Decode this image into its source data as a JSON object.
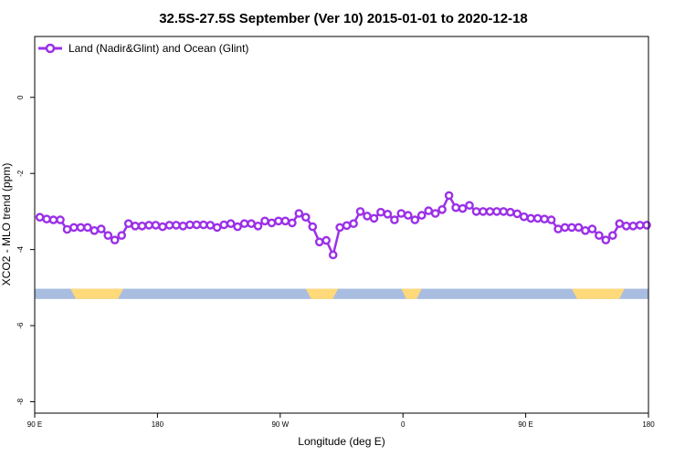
{
  "chart_data": {
    "type": "line",
    "title": "32.5S-27.5S September (Ver 10)   2015-01-01 to 2020-12-18",
    "xlabel": "Longitude (deg E)",
    "ylabel": "XCO2 - MLO trend (ppm)",
    "xlim": [
      90,
      450
    ],
    "ylim": [
      -8.3,
      1.6
    ],
    "x_ticks": [
      {
        "value": 90,
        "label": "90 E"
      },
      {
        "value": 162,
        "label": "180"
      },
      {
        "value": 234,
        "label": "90 W"
      },
      {
        "value": 306,
        "label": "0"
      },
      {
        "value": 378,
        "label": "90 E"
      },
      {
        "value": 450,
        "label": "180"
      }
    ],
    "y_ticks": [
      {
        "value": 0,
        "label": "0"
      },
      {
        "value": -2,
        "label": "-2"
      },
      {
        "value": -4,
        "label": "-4"
      },
      {
        "value": -6,
        "label": "-6"
      },
      {
        "value": -8,
        "label": "-8"
      }
    ],
    "grid": false,
    "legend_position": "top-left",
    "series": [
      {
        "name": "Land (Nadir&Glint) and Ocean (Glint)",
        "color": "#9b30e8",
        "x": [
          93,
          97,
          101,
          105,
          109,
          113,
          117,
          121,
          125,
          129,
          133,
          137,
          141,
          145,
          149,
          153,
          157,
          161,
          165,
          169,
          173,
          177,
          181,
          185,
          189,
          193,
          197,
          201,
          205,
          209,
          213,
          217,
          221,
          225,
          229,
          233,
          237,
          241,
          245,
          249,
          253,
          257,
          261,
          265,
          269,
          273,
          277,
          281,
          285,
          289,
          293,
          297,
          301,
          305,
          309,
          313,
          317,
          321,
          325,
          329,
          333,
          337,
          341,
          345,
          349,
          353,
          357,
          361,
          365,
          369,
          373,
          377,
          381,
          385,
          389,
          393,
          397,
          401,
          405,
          409,
          413,
          417,
          421,
          425,
          429,
          433,
          437,
          441,
          445,
          449
        ],
        "y": [
          -3.15,
          -3.2,
          -3.22,
          -3.22,
          -3.47,
          -3.42,
          -3.42,
          -3.42,
          -3.5,
          -3.46,
          -3.63,
          -3.75,
          -3.63,
          -3.32,
          -3.38,
          -3.38,
          -3.36,
          -3.36,
          -3.4,
          -3.36,
          -3.36,
          -3.38,
          -3.35,
          -3.35,
          -3.35,
          -3.36,
          -3.42,
          -3.35,
          -3.32,
          -3.4,
          -3.32,
          -3.32,
          -3.38,
          -3.25,
          -3.3,
          -3.25,
          -3.25,
          -3.3,
          -3.05,
          -3.15,
          -3.4,
          -3.8,
          -3.76,
          -4.14,
          -3.42,
          -3.37,
          -3.32,
          -3.0,
          -3.12,
          -3.18,
          -3.02,
          -3.07,
          -3.22,
          -3.05,
          -3.1,
          -3.22,
          -3.1,
          -2.98,
          -3.05,
          -2.95,
          -2.58,
          -2.9,
          -2.92,
          -2.84,
          -3.0,
          -3.0,
          -3.0,
          -3.0,
          -3.0,
          -3.02,
          -3.06,
          -3.14,
          -3.18,
          -3.18,
          -3.2,
          -3.22,
          -3.46,
          -3.42,
          -3.42,
          -3.42,
          -3.5,
          -3.46,
          -3.63,
          -3.75,
          -3.63,
          -3.32,
          -3.38,
          -3.38,
          -3.36,
          -3.36
        ]
      }
    ],
    "surface_band": {
      "y_range": [
        -5.3,
        -5.03
      ],
      "ocean_color": "#a8bde0",
      "land_color": "#ffd97a",
      "land_segments": [
        [
          111,
          142
        ],
        [
          249,
          268
        ],
        [
          305,
          317
        ],
        [
          405,
          436
        ]
      ]
    }
  }
}
